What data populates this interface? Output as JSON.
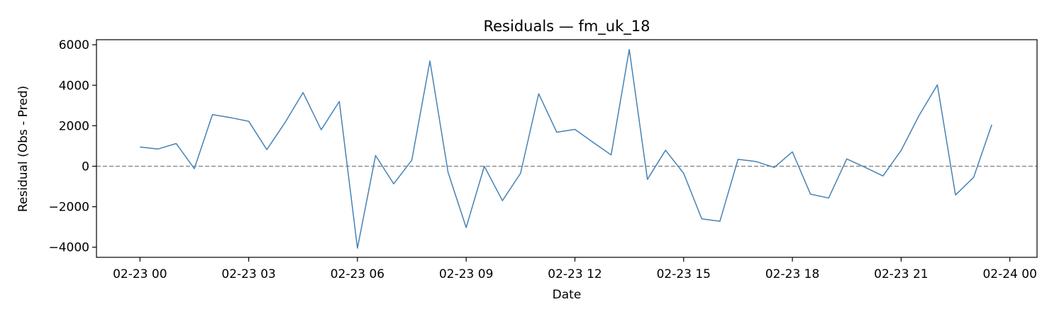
{
  "chart_data": {
    "type": "line",
    "title": "Residuals — fm_uk_18",
    "xlabel": "Date",
    "ylabel": "Residual (Obs - Pred)",
    "x_tick_labels": [
      "02-23 00",
      "02-23 03",
      "02-23 06",
      "02-23 09",
      "02-23 12",
      "02-23 15",
      "02-23 18",
      "02-23 21",
      "02-24 00"
    ],
    "y_ticks": [
      -4000,
      -2000,
      0,
      2000,
      4000,
      6000
    ],
    "ylim": [
      -4500,
      6250
    ],
    "xlim": [
      "2024-02-22 22:48",
      "2024-02-24 00:45"
    ],
    "reference_line": {
      "y": 0,
      "style": "dashed",
      "color": "#808080"
    },
    "line_color": "#4682b4",
    "grid": false,
    "x": [
      "2024-02-23 00:00",
      "2024-02-23 00:30",
      "2024-02-23 01:00",
      "2024-02-23 01:30",
      "2024-02-23 02:00",
      "2024-02-23 02:30",
      "2024-02-23 03:00",
      "2024-02-23 03:30",
      "2024-02-23 04:00",
      "2024-02-23 04:30",
      "2024-02-23 05:00",
      "2024-02-23 05:30",
      "2024-02-23 06:00",
      "2024-02-23 06:30",
      "2024-02-23 07:00",
      "2024-02-23 07:30",
      "2024-02-23 08:00",
      "2024-02-23 08:30",
      "2024-02-23 09:00",
      "2024-02-23 09:30",
      "2024-02-23 10:00",
      "2024-02-23 10:30",
      "2024-02-23 11:00",
      "2024-02-23 11:30",
      "2024-02-23 12:00",
      "2024-02-23 12:30",
      "2024-02-23 13:00",
      "2024-02-23 13:30",
      "2024-02-23 14:00",
      "2024-02-23 14:30",
      "2024-02-23 15:00",
      "2024-02-23 15:30",
      "2024-02-23 16:00",
      "2024-02-23 16:30",
      "2024-02-23 17:00",
      "2024-02-23 17:30",
      "2024-02-23 18:00",
      "2024-02-23 18:30",
      "2024-02-23 19:00",
      "2024-02-23 19:30",
      "2024-02-23 20:00",
      "2024-02-23 20:30",
      "2024-02-23 21:00",
      "2024-02-23 21:30",
      "2024-02-23 22:00",
      "2024-02-23 22:30",
      "2024-02-23 23:00",
      "2024-02-23 23:30"
    ],
    "values": [
      950,
      850,
      1120,
      -120,
      2550,
      2400,
      2220,
      820,
      2150,
      3640,
      1800,
      3200,
      -4050,
      530,
      -870,
      300,
      5200,
      -300,
      -3030,
      0,
      -1700,
      -350,
      3580,
      1680,
      1820,
      1180,
      560,
      5770,
      -650,
      790,
      -350,
      -2600,
      -2720,
      340,
      230,
      -60,
      710,
      -1380,
      -1570,
      360,
      -50,
      -480,
      780,
      2520,
      4020,
      -1420,
      -550,
      2050
    ]
  }
}
